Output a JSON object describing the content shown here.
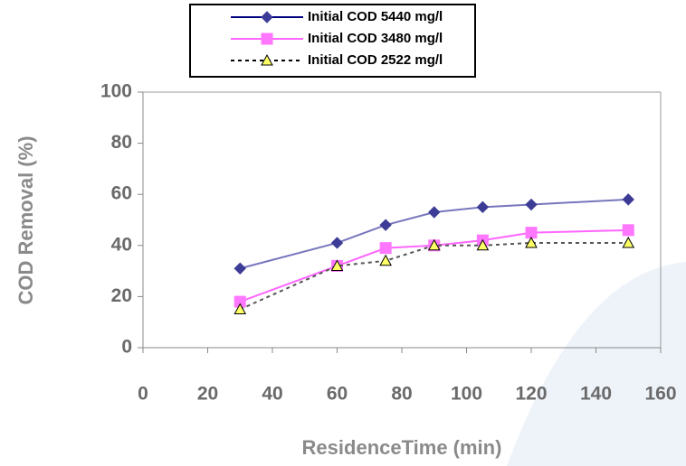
{
  "chart_data": {
    "type": "line",
    "x_label": "ResidenceTime (min)",
    "y_label": "COD Removal (%)",
    "x": [
      30,
      60,
      75,
      90,
      105,
      120,
      150
    ],
    "series": [
      {
        "name": "Initial COD 5440 mg/l",
        "color": "#7676bd",
        "marker_color": "#3c3c96",
        "marker": "diamond",
        "line_style": "solid",
        "values": [
          31,
          41,
          48,
          53,
          55,
          56,
          58
        ]
      },
      {
        "name": "Initial COD 3480 mg/l",
        "color": "#ff66ff",
        "marker_color": "#ff77ff",
        "marker": "square",
        "line_style": "solid",
        "values": [
          18,
          32,
          39,
          40,
          42,
          45,
          46
        ]
      },
      {
        "name": "Initial COD 2522 mg/l",
        "color": "#555555",
        "marker_color": "#ffff66",
        "marker": "triangle",
        "line_style": "dashed",
        "values": [
          15,
          32,
          34,
          40,
          40,
          41,
          41
        ]
      }
    ],
    "xlim": [
      0,
      160
    ],
    "xticks": [
      0,
      20,
      40,
      60,
      80,
      100,
      120,
      140,
      160
    ],
    "ylim": [
      0,
      100
    ],
    "yticks": [
      0,
      20,
      40,
      60,
      80,
      100
    ],
    "grid": false
  }
}
